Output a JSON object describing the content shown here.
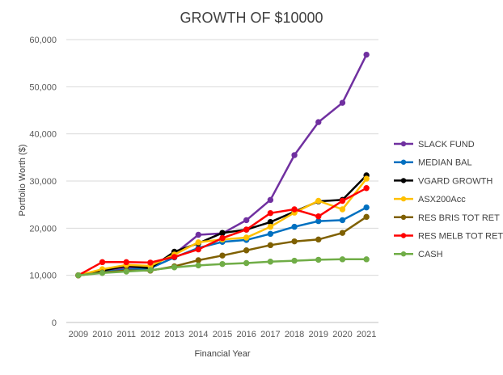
{
  "chart_data": {
    "type": "line",
    "title": "GROWTH OF $10000",
    "xlabel": "Financial Year",
    "ylabel": "Portfolio Worth ($)",
    "x": [
      "2009",
      "2010",
      "2011",
      "2012",
      "2013",
      "2014",
      "2015",
      "2016",
      "2017",
      "2018",
      "2019",
      "2020",
      "2021"
    ],
    "ylim": [
      0,
      60000
    ],
    "yticks": [
      0,
      10000,
      20000,
      30000,
      40000,
      50000,
      60000
    ],
    "ytick_labels": [
      "0",
      "10,000",
      "20,000",
      "30,000",
      "40,000",
      "50,000",
      "60,000"
    ],
    "grid": "horizontal",
    "legend_position": "right",
    "series": [
      {
        "name": "SLACK FUND",
        "color": "#7030a0",
        "values": [
          10000,
          11000,
          11500,
          12000,
          14500,
          18600,
          18900,
          21700,
          26000,
          35500,
          42500,
          46600,
          56800
        ]
      },
      {
        "name": "MEDIAN BAL",
        "color": "#0070c0",
        "values": [
          10000,
          10700,
          11200,
          11500,
          13800,
          15800,
          17100,
          17500,
          18800,
          20300,
          21500,
          21700,
          24400
        ]
      },
      {
        "name": "VGARD GROWTH",
        "color": "#000000",
        "values": [
          10000,
          11000,
          12000,
          11500,
          15000,
          16800,
          19000,
          19700,
          21300,
          23500,
          25700,
          26000,
          31200
        ]
      },
      {
        "name": "ASX200Acc",
        "color": "#ffc000",
        "values": [
          10000,
          11300,
          12200,
          12000,
          14400,
          17000,
          17600,
          18000,
          20300,
          23300,
          25800,
          24000,
          30500
        ]
      },
      {
        "name": "RES BRIS TOT RET",
        "color": "#7f6000",
        "values": [
          10000,
          10600,
          11000,
          11000,
          11900,
          13200,
          14200,
          15300,
          16400,
          17200,
          17600,
          19000,
          22400
        ]
      },
      {
        "name": "RES MELB TOT RET",
        "color": "#ff0000",
        "values": [
          10000,
          12800,
          12800,
          12700,
          13900,
          15500,
          17900,
          19700,
          23200,
          24000,
          22500,
          25800,
          28500
        ]
      },
      {
        "name": "CASH",
        "color": "#70ad47",
        "values": [
          10000,
          10500,
          10800,
          11100,
          11700,
          12100,
          12400,
          12600,
          12900,
          13100,
          13300,
          13400,
          13400
        ]
      }
    ]
  }
}
